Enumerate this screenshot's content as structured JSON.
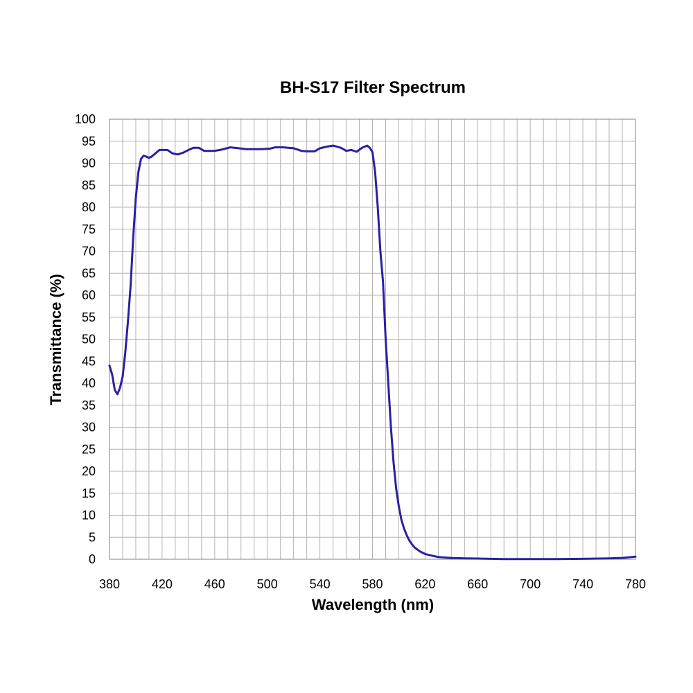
{
  "chart_data": {
    "type": "line",
    "title": "BH-S17 Filter  Spectrum",
    "xlabel": "Wavelength (nm)",
    "ylabel": "Transmittance (%)",
    "xlim": [
      380,
      780
    ],
    "ylim": [
      0,
      100
    ],
    "x_ticks": [
      "380",
      "420",
      "460",
      "500",
      "540",
      "580",
      "620",
      "660",
      "700",
      "740",
      "780"
    ],
    "y_ticks": [
      "0",
      "5",
      "10",
      "15",
      "20",
      "25",
      "30",
      "35",
      "40",
      "45",
      "50",
      "55",
      "60",
      "65",
      "70",
      "75",
      "80",
      "85",
      "90",
      "95",
      "100"
    ],
    "grid": true,
    "legend": "none",
    "colors": {
      "line": "#2b1fa3",
      "grid": "#b3b3b3",
      "frame": "#808080"
    },
    "series": [
      {
        "x": [
          380,
          382,
          384,
          386,
          388,
          390,
          392,
          394,
          396,
          398,
          400,
          402,
          404,
          406,
          408,
          410,
          412,
          414,
          418,
          420,
          424,
          428,
          432,
          436,
          440,
          444,
          448,
          452,
          456,
          460,
          464,
          468,
          472,
          478,
          484,
          490,
          496,
          502,
          506,
          512,
          520,
          526,
          530,
          536,
          540,
          546,
          550,
          556,
          560,
          564,
          568,
          572,
          576,
          578,
          580,
          582,
          584,
          586,
          588,
          590,
          592,
          594,
          596,
          598,
          600,
          602,
          604,
          606,
          608,
          610,
          612,
          616,
          620,
          624,
          630,
          640,
          650,
          660,
          670,
          680,
          700,
          720,
          740,
          760,
          770,
          780
        ],
        "y": [
          44,
          42,
          38.5,
          37.5,
          39,
          41.5,
          47,
          54,
          62,
          73,
          82,
          88,
          91,
          91.7,
          91.5,
          91.2,
          91.5,
          92,
          93,
          93,
          93,
          92.2,
          92,
          92.4,
          93,
          93.5,
          93.5,
          92.8,
          92.8,
          92.8,
          93,
          93.3,
          93.6,
          93.4,
          93.2,
          93.2,
          93.2,
          93.3,
          93.6,
          93.6,
          93.4,
          92.8,
          92.7,
          92.7,
          93.4,
          93.8,
          94,
          93.5,
          92.8,
          93,
          92.6,
          93.5,
          94,
          93.5,
          92.5,
          88,
          80,
          70,
          63,
          50,
          40,
          30,
          22,
          16,
          12,
          9,
          7,
          5.5,
          4.3,
          3.4,
          2.7,
          1.8,
          1.2,
          0.9,
          0.5,
          0.3,
          0.2,
          0.15,
          0.1,
          0.05,
          0.05,
          0.05,
          0.1,
          0.2,
          0.3,
          0.6
        ]
      }
    ]
  }
}
